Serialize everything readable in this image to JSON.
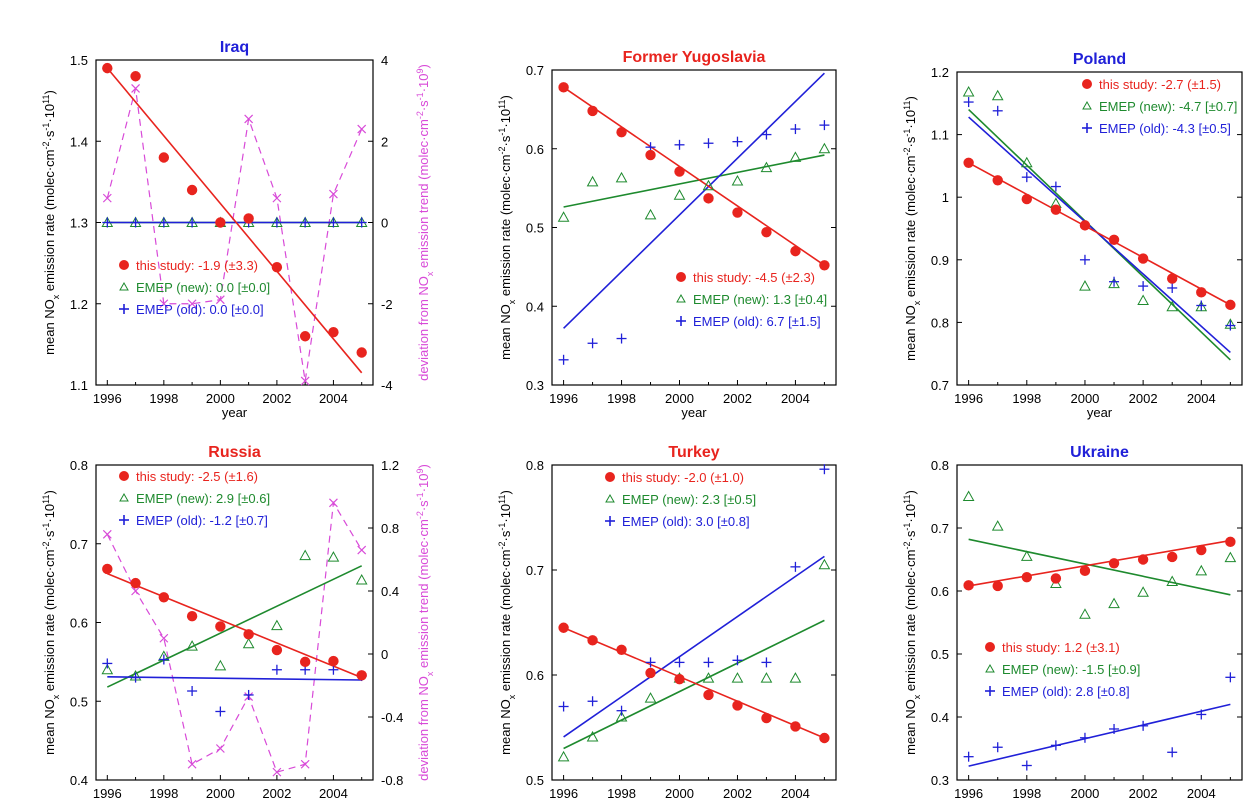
{
  "figure": {
    "xlabel": "year",
    "ylabel_main": "mean NO",
    "ylabel_sub": "x",
    "ylabel_rest": " emission rate (molec·cm",
    "ylabel_unit_tail": "·s",
    "ylabel_end": ")",
    "y2label_main": "deviation from NO",
    "y2label_sub": "x",
    "y2label_rest": " emission trend (molec·cm",
    "y2label_end": ")"
  },
  "colors": {
    "study": "#e8241e",
    "new": "#1e8a2e",
    "old": "#2020d8",
    "dev": "#d84ad8",
    "axis": "#000000"
  },
  "chart_data": [
    {
      "type": "scatter",
      "title": "Iraq",
      "title_color": "#2020d8",
      "x_ticks": [
        "1996",
        "1998",
        "2000",
        "2002",
        "2004"
      ],
      "xlim": [
        1995.6,
        2005.4
      ],
      "ylim": [
        1.1,
        1.5
      ],
      "y_ticks": [
        "1.1",
        "1.2",
        "1.3",
        "1.4",
        "1.5"
      ],
      "y2lim": [
        -4,
        4
      ],
      "y2_ticks": [
        "-4",
        "-2",
        "0",
        "2",
        "4"
      ],
      "x": [
        1996,
        1997,
        1998,
        1999,
        2000,
        2001,
        2002,
        2003,
        2004,
        2005
      ],
      "series": [
        {
          "name": "this study",
          "values": [
            1.49,
            1.48,
            1.38,
            1.34,
            1.3,
            1.305,
            1.245,
            1.16,
            1.165,
            1.14
          ],
          "trend": [
            1.49,
            1.115
          ]
        },
        {
          "name": "EMEP (new)",
          "values": [
            1.3,
            1.3,
            1.3,
            1.3,
            1.3,
            1.3,
            1.3,
            1.3,
            1.3,
            1.3
          ],
          "trend": [
            1.3,
            1.3
          ]
        },
        {
          "name": "EMEP (old)",
          "values": [
            1.3,
            1.3,
            1.3,
            1.3,
            1.3,
            1.3,
            1.3,
            1.3,
            1.3,
            1.3
          ],
          "trend": [
            1.3,
            1.3
          ]
        }
      ],
      "deviation": [
        0.6,
        3.3,
        -2.0,
        -2.0,
        -1.9,
        2.55,
        0.6,
        -3.9,
        0.7,
        2.3
      ],
      "legend": [
        {
          "label": "this study: -1.9 (±3.3)"
        },
        {
          "label": "EMEP (new): 0.0 [±0.0]"
        },
        {
          "label": "EMEP (old): 0.0 [±0.0]"
        }
      ],
      "legend_placement": "bottom-left"
    },
    {
      "type": "scatter",
      "title": "Former Yugoslavia",
      "title_color": "#e8241e",
      "x_ticks": [
        "1996",
        "1998",
        "2000",
        "2002",
        "2004"
      ],
      "xlim": [
        1995.6,
        2005.4
      ],
      "ylim": [
        0.3,
        0.7
      ],
      "y_ticks": [
        "0.3",
        "0.4",
        "0.5",
        "0.6",
        "0.7"
      ],
      "x": [
        1996,
        1997,
        1998,
        1999,
        2000,
        2001,
        2002,
        2003,
        2004,
        2005
      ],
      "series": [
        {
          "name": "this study",
          "values": [
            0.678,
            0.648,
            0.621,
            0.592,
            0.571,
            0.537,
            0.519,
            0.494,
            0.47,
            0.452
          ],
          "trend": [
            0.678,
            0.452
          ]
        },
        {
          "name": "EMEP (new)",
          "values": [
            0.513,
            0.558,
            0.563,
            0.516,
            0.541,
            0.553,
            0.559,
            0.576,
            0.589,
            0.6
          ],
          "trend": [
            0.526,
            0.592
          ]
        },
        {
          "name": "EMEP (old)",
          "values": [
            0.332,
            0.353,
            0.359,
            0.602,
            0.605,
            0.607,
            0.609,
            0.618,
            0.625,
            0.63
          ],
          "trend": [
            0.372,
            0.696
          ]
        }
      ],
      "legend": [
        {
          "label": "this study: -4.5 (±2.3)"
        },
        {
          "label": "EMEP (new): 1.3 [±0.4]"
        },
        {
          "label": "EMEP (old): 6.7 [±1.5]"
        }
      ],
      "legend_placement": "bottom-right"
    },
    {
      "type": "scatter",
      "title": "Poland",
      "title_color": "#2020d8",
      "x_ticks": [
        "1996",
        "1998",
        "2000",
        "2002",
        "2004"
      ],
      "xlim": [
        1995.6,
        2005.4
      ],
      "ylim": [
        0.7,
        1.2
      ],
      "y_ticks": [
        "0.7",
        "0.8",
        "0.9",
        "1",
        "1.1",
        "1.2"
      ],
      "x": [
        1996,
        1997,
        1998,
        1999,
        2000,
        2001,
        2002,
        2003,
        2004,
        2005
      ],
      "series": [
        {
          "name": "this study",
          "values": [
            1.055,
            1.027,
            0.997,
            0.98,
            0.955,
            0.932,
            0.902,
            0.87,
            0.848,
            0.828
          ],
          "trend": [
            1.055,
            0.828
          ]
        },
        {
          "name": "EMEP (new)",
          "values": [
            1.168,
            1.162,
            1.055,
            0.99,
            0.858,
            0.862,
            0.835,
            0.825,
            0.825,
            0.797
          ],
          "trend": [
            1.14,
            0.74
          ]
        },
        {
          "name": "EMEP (old)",
          "values": [
            1.152,
            1.138,
            1.032,
            1.017,
            0.9,
            0.865,
            0.858,
            0.855,
            0.827,
            0.795
          ],
          "trend": [
            1.128,
            0.752
          ]
        }
      ],
      "legend": [
        {
          "label": "this study: -2.7 (±1.5)"
        },
        {
          "label": "EMEP (new): -4.7 [±0.7]"
        },
        {
          "label": "EMEP (old): -4.3 [±0.5]"
        }
      ],
      "legend_placement": "top-right"
    },
    {
      "type": "scatter",
      "title": "Russia",
      "title_color": "#e8241e",
      "x_ticks": [
        "1996",
        "1998",
        "2000",
        "2002",
        "2004"
      ],
      "xlim": [
        1995.6,
        2005.4
      ],
      "ylim": [
        0.4,
        0.8
      ],
      "y_ticks": [
        "0.4",
        "0.5",
        "0.6",
        "0.7",
        "0.8"
      ],
      "y2lim": [
        -0.8,
        1.2
      ],
      "y2_ticks": [
        "-0.8",
        "-0.4",
        "0",
        "0.4",
        "0.8",
        "1.2"
      ],
      "x": [
        1996,
        1997,
        1998,
        1999,
        2000,
        2001,
        2002,
        2003,
        2004,
        2005
      ],
      "series": [
        {
          "name": "this study",
          "values": [
            0.668,
            0.65,
            0.632,
            0.608,
            0.595,
            0.585,
            0.565,
            0.55,
            0.551,
            0.533
          ],
          "trend": [
            0.662,
            0.53
          ]
        },
        {
          "name": "EMEP (new)",
          "values": [
            0.54,
            0.532,
            0.557,
            0.57,
            0.545,
            0.573,
            0.596,
            0.685,
            0.683,
            0.654
          ],
          "trend": [
            0.518,
            0.672
          ]
        },
        {
          "name": "EMEP (old)",
          "values": [
            0.548,
            0.53,
            0.553,
            0.513,
            0.487,
            0.508,
            0.54,
            0.54,
            0.54,
            0.532
          ],
          "trend": [
            0.531,
            0.527
          ]
        }
      ],
      "deviation": [
        0.76,
        0.4,
        0.1,
        -0.7,
        -0.6,
        -0.27,
        -0.75,
        -0.7,
        0.96,
        0.66
      ],
      "legend": [
        {
          "label": "this study: -2.5 (±1.6)"
        },
        {
          "label": "EMEP (new): 2.9 [±0.6]"
        },
        {
          "label": "EMEP (old): -1.2 [±0.7]"
        }
      ],
      "legend_placement": "top-center"
    },
    {
      "type": "scatter",
      "title": "Turkey",
      "title_color": "#e8241e",
      "x_ticks": [
        "1996",
        "1998",
        "2000",
        "2002",
        "2004"
      ],
      "xlim": [
        1995.6,
        2005.4
      ],
      "ylim": [
        0.5,
        0.8
      ],
      "y_ticks": [
        "0.5",
        "0.6",
        "0.7",
        "0.8"
      ],
      "x": [
        1996,
        1997,
        1998,
        1999,
        2000,
        2001,
        2002,
        2003,
        2004,
        2005
      ],
      "series": [
        {
          "name": "this study",
          "values": [
            0.645,
            0.633,
            0.624,
            0.602,
            0.596,
            0.581,
            0.571,
            0.559,
            0.551,
            0.54
          ],
          "trend": [
            0.645,
            0.54
          ]
        },
        {
          "name": "EMEP (new)",
          "values": [
            0.522,
            0.541,
            0.56,
            0.578,
            0.597,
            0.597,
            0.597,
            0.597,
            0.597,
            0.705
          ],
          "trend": [
            0.53,
            0.652
          ]
        },
        {
          "name": "EMEP (old)",
          "values": [
            0.57,
            0.575,
            0.566,
            0.612,
            0.612,
            0.612,
            0.614,
            0.612,
            0.703,
            0.796
          ],
          "trend": [
            0.541,
            0.713
          ]
        }
      ],
      "legend": [
        {
          "label": "this study: -2.0 (±1.0)"
        },
        {
          "label": "EMEP (new): 2.3 [±0.5]"
        },
        {
          "label": "EMEP (old): 3.0 [±0.8]"
        }
      ],
      "legend_placement": "top-left"
    },
    {
      "type": "scatter",
      "title": "Ukraine",
      "title_color": "#2020d8",
      "x_ticks": [
        "1996",
        "1998",
        "2000",
        "2002",
        "2004"
      ],
      "xlim": [
        1995.6,
        2005.4
      ],
      "ylim": [
        0.3,
        0.8
      ],
      "y_ticks": [
        "0.3",
        "0.4",
        "0.5",
        "0.6",
        "0.7",
        "0.8"
      ],
      "x": [
        1996,
        1997,
        1998,
        1999,
        2000,
        2001,
        2002,
        2003,
        2004,
        2005
      ],
      "series": [
        {
          "name": "this study",
          "values": [
            0.609,
            0.608,
            0.622,
            0.62,
            0.632,
            0.644,
            0.65,
            0.654,
            0.665,
            0.678
          ],
          "trend": [
            0.608,
            0.68
          ]
        },
        {
          "name": "EMEP (new)",
          "values": [
            0.75,
            0.703,
            0.655,
            0.612,
            0.563,
            0.58,
            0.598,
            0.615,
            0.632,
            0.653
          ],
          "trend": [
            0.682,
            0.594
          ]
        },
        {
          "name": "EMEP (old)",
          "values": [
            0.337,
            0.352,
            0.323,
            0.355,
            0.367,
            0.381,
            0.386,
            0.344,
            0.404,
            0.463
          ],
          "trend": [
            0.322,
            0.42
          ]
        }
      ],
      "legend": [
        {
          "label": "this study: 1.2 (±3.1)"
        },
        {
          "label": "EMEP (new): -1.5 [±0.9]"
        },
        {
          "label": "EMEP (old): 2.8 [±0.8]"
        }
      ],
      "legend_placement": "middle-left"
    }
  ]
}
